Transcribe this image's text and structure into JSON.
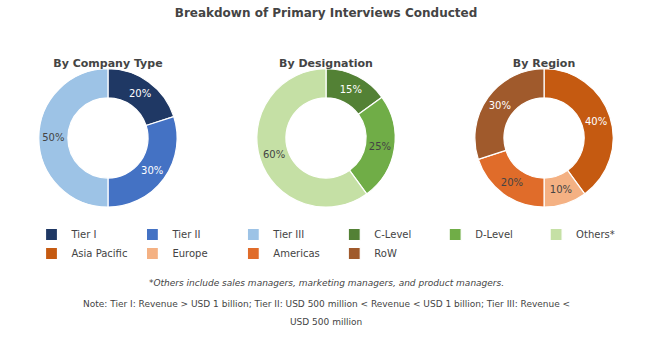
{
  "title": "Breakdown of Primary Interviews Conducted",
  "annotations": [
    "*Others include sales managers, marketing managers, and product managers.",
    "Note: Tier I: Revenue > USD 1 billion; Tier II: USD 500 million < Revenue < USD 1 billion; Tier III: Revenue <",
    "USD 500 million"
  ],
  "chart_data": [
    {
      "type": "pie",
      "title": "By Company Type",
      "categories": [
        "Tier I",
        "Tier II",
        "Tier III"
      ],
      "values": [
        20,
        30,
        50
      ],
      "value_labels": [
        "20%",
        "30%",
        "50%"
      ],
      "colors": [
        "#1f3864",
        "#4472c4",
        "#9dc3e6"
      ],
      "data_labels": true,
      "legend": "bottom"
    },
    {
      "type": "pie",
      "title": "By Designation",
      "categories": [
        "C-Level",
        "D-Level",
        "Others*"
      ],
      "values": [
        15,
        25,
        60
      ],
      "value_labels": [
        "15%",
        "25%",
        "60%"
      ],
      "colors": [
        "#538135",
        "#70ad47",
        "#c5e0a5"
      ],
      "data_labels": true,
      "legend": "bottom"
    },
    {
      "type": "pie",
      "title": "By Region",
      "categories": [
        "Asia Pacific",
        "Europe",
        "Americas",
        "RoW"
      ],
      "values": [
        40,
        10,
        20,
        30
      ],
      "value_labels": [
        "40%",
        "10%",
        "20%",
        "30%"
      ],
      "colors": [
        "#c55a11",
        "#f4b183",
        "#e06c2a",
        "#a05a2c"
      ],
      "data_labels": true,
      "legend": "bottom"
    }
  ]
}
